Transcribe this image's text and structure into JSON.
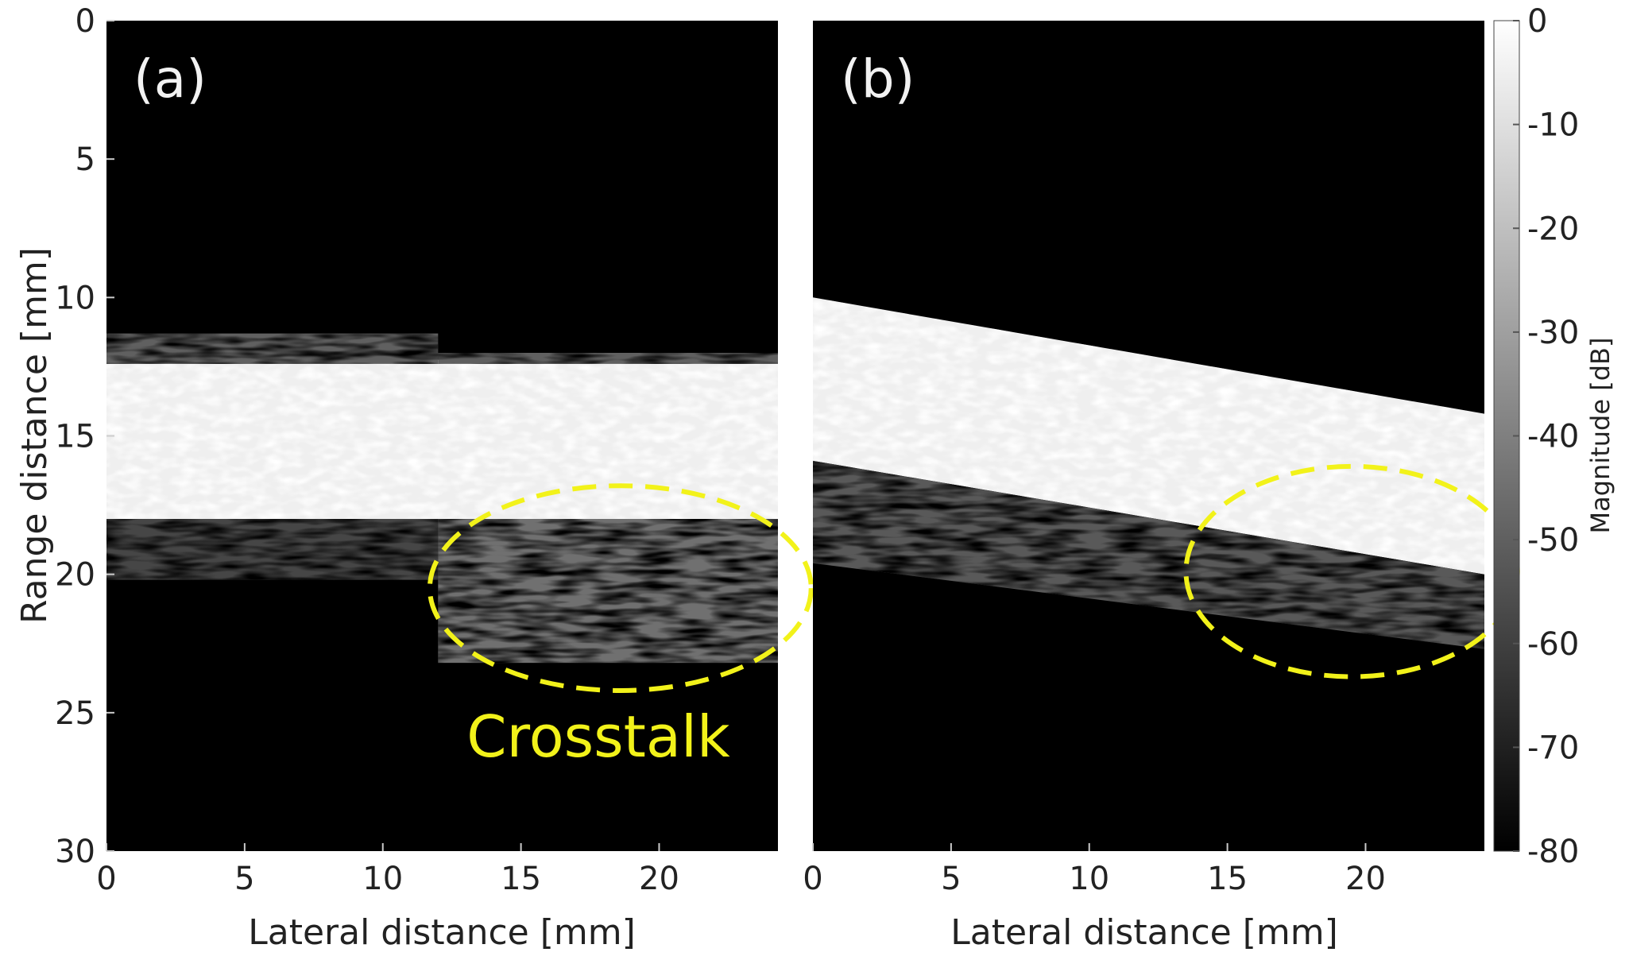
{
  "chart_data": [
    {
      "type": "heatmap",
      "panel_label": "(a)",
      "xlabel": "Lateral distance [mm]",
      "ylabel": "Range distance [mm]",
      "xlim": [
        0,
        24.3
      ],
      "ylim": [
        30,
        0
      ],
      "x_ticks": [
        "0",
        "5",
        "10",
        "15",
        "20"
      ],
      "x_tick_values": [
        0,
        5,
        10,
        15,
        20
      ],
      "y_ticks": [
        "0",
        "5",
        "10",
        "15",
        "20",
        "25",
        "30"
      ],
      "y_tick_values": [
        0,
        5,
        10,
        15,
        20,
        25,
        30
      ],
      "regions": [
        {
          "kind": "bright-layer",
          "level_db": -5,
          "x": [
            0,
            24.3
          ],
          "top": [
            12.4,
            12.1
          ],
          "bottom": [
            18.0,
            18.0
          ]
        },
        {
          "kind": "speckle",
          "level_db": -50,
          "x_range": [
            0,
            12
          ],
          "top": 11.3,
          "bottom": 12.4
        },
        {
          "kind": "speckle",
          "level_db": -50,
          "x_range": [
            12,
            24.3
          ],
          "top": 12.0,
          "bottom": 12.4
        },
        {
          "kind": "speckle",
          "level_db": -58,
          "x_range": [
            0,
            12
          ],
          "top": 18.0,
          "bottom": 20.2
        },
        {
          "kind": "speckle-crosstalk",
          "level_db": -45,
          "x_range": [
            12,
            24.3
          ],
          "top": 18.0,
          "bottom": 23.2
        }
      ],
      "annotation": {
        "text": "Crosstalk",
        "ellipse": {
          "cx": 18.6,
          "cy": 20.5,
          "rx": 6.9,
          "ry": 3.7
        }
      }
    },
    {
      "type": "heatmap",
      "panel_label": "(b)",
      "xlabel": "Lateral distance [mm]",
      "ylabel": "",
      "xlim": [
        0,
        24.3
      ],
      "ylim": [
        30,
        0
      ],
      "x_ticks": [
        "0",
        "5",
        "10",
        "15",
        "20"
      ],
      "x_tick_values": [
        0,
        5,
        10,
        15,
        20
      ],
      "y_ticks": [],
      "regions": [
        {
          "kind": "bright-layer",
          "level_db": -5,
          "x": [
            0,
            24.3
          ],
          "top": [
            10.0,
            14.2
          ],
          "bottom": [
            15.9,
            20.0
          ]
        },
        {
          "kind": "speckle-crosstalk",
          "level_db": -52,
          "x": [
            0,
            24.3
          ],
          "top": [
            15.9,
            20.0
          ],
          "bottom": [
            19.6,
            22.7
          ]
        }
      ],
      "annotation": {
        "text": "",
        "ellipse": {
          "cx": 19.5,
          "cy": 19.9,
          "rx": 6.0,
          "ry": 3.8
        }
      }
    }
  ],
  "colorbar": {
    "label": "Magnitude [dB]",
    "range": [
      -80,
      0
    ],
    "ticks": [
      "0",
      "-10",
      "-20",
      "-30",
      "-40",
      "-50",
      "-60",
      "-70",
      "-80"
    ],
    "tick_values": [
      0,
      -10,
      -20,
      -30,
      -40,
      -50,
      -60,
      -70,
      -80
    ],
    "colormap": "gray"
  },
  "colors": {
    "background": "#000000",
    "annotation": "#f2f21a",
    "panel_label": "#f2f2f2"
  }
}
